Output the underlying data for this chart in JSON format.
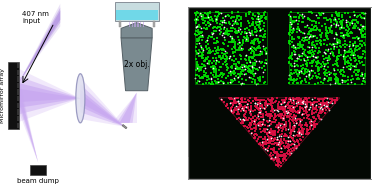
{
  "fig_width": 3.72,
  "fig_height": 1.89,
  "dpi": 100,
  "left_panel": {
    "bg_color": "#ffffff",
    "purple_light": "#c8a8f0",
    "purple_mid": "#b090e0",
    "purple_dark": "#9966cc",
    "mirror_color": "#666666",
    "obj_color": "#7a8a90",
    "obj_edge": "#556066",
    "dish_outer": "#c8dde0",
    "dish_liquid": "#70d8e8",
    "dish_stand": "#aaaaaa",
    "lens_face": "#e0e0f0",
    "lens_edge": "#9090bb",
    "mm_color": "#111111",
    "bd_color": "#111111",
    "text_color": "#000000",
    "text_fontsize": 5.0,
    "label_407": "407 nm\ninput",
    "label_mm": "Micromirror array",
    "label_bd": "beam dump",
    "label_obj": "2x obj."
  },
  "right_panel": {
    "bg_color": "#030803",
    "green_color": "#00dd00",
    "red_color": "#dd1144",
    "white_color": "#ffffff",
    "border_color": "#888888"
  }
}
